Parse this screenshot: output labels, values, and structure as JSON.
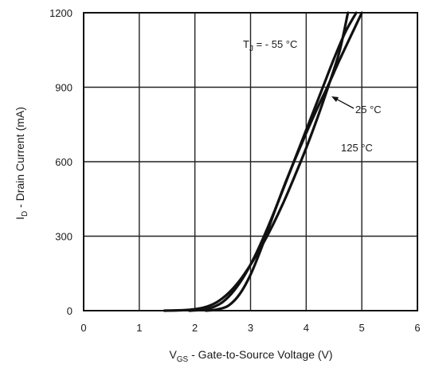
{
  "chart_data": {
    "type": "line",
    "xlabel": {
      "main": "V",
      "sub": "GS",
      "rest": " - Gate-to-Source Voltage (V)"
    },
    "ylabel": {
      "main": "I",
      "sub": "D",
      "rest": " - Drain Current (mA)"
    },
    "xlim": [
      0,
      6
    ],
    "ylim": [
      0,
      1200
    ],
    "xticks": [
      "0",
      "1",
      "2",
      "3",
      "4",
      "5",
      "6"
    ],
    "yticks": [
      "0",
      "300",
      "600",
      "900",
      "1200"
    ],
    "grid": true,
    "series": [
      {
        "name": "- 55 °C",
        "x": [
          1.45,
          1.8,
          2.0,
          2.2,
          2.4,
          2.6,
          2.8,
          3.0,
          3.2,
          3.4,
          3.6,
          3.8,
          4.0,
          4.2,
          4.4,
          4.6,
          4.75
        ],
        "y": [
          0,
          2,
          6,
          15,
          35,
          70,
          120,
          185,
          260,
          345,
          440,
          545,
          655,
          775,
          905,
          1045,
          1200
        ]
      },
      {
        "name": "25 °C",
        "x": [
          1.9,
          2.1,
          2.3,
          2.5,
          2.7,
          2.9,
          3.1,
          3.3,
          3.5,
          3.7,
          3.9,
          4.1,
          4.3,
          4.5,
          4.7,
          4.9
        ],
        "y": [
          0,
          3,
          12,
          35,
          80,
          145,
          230,
          330,
          440,
          555,
          670,
          785,
          900,
          1015,
          1120,
          1200
        ]
      },
      {
        "name": "125 °C",
        "x": [
          2.2,
          2.4,
          2.6,
          2.8,
          3.0,
          3.2,
          3.4,
          3.6,
          3.8,
          4.0,
          4.2,
          4.4,
          4.6,
          4.8,
          5.0
        ],
        "y": [
          0,
          5,
          20,
          65,
          145,
          255,
          380,
          500,
          610,
          715,
          815,
          910,
          1010,
          1105,
          1200
        ]
      }
    ],
    "annotations": {
      "tj_main": "T",
      "tj_sub": "J",
      "tj_rest": " = - 55 °C",
      "t25": "25 °C",
      "t125": "125 °C"
    }
  }
}
